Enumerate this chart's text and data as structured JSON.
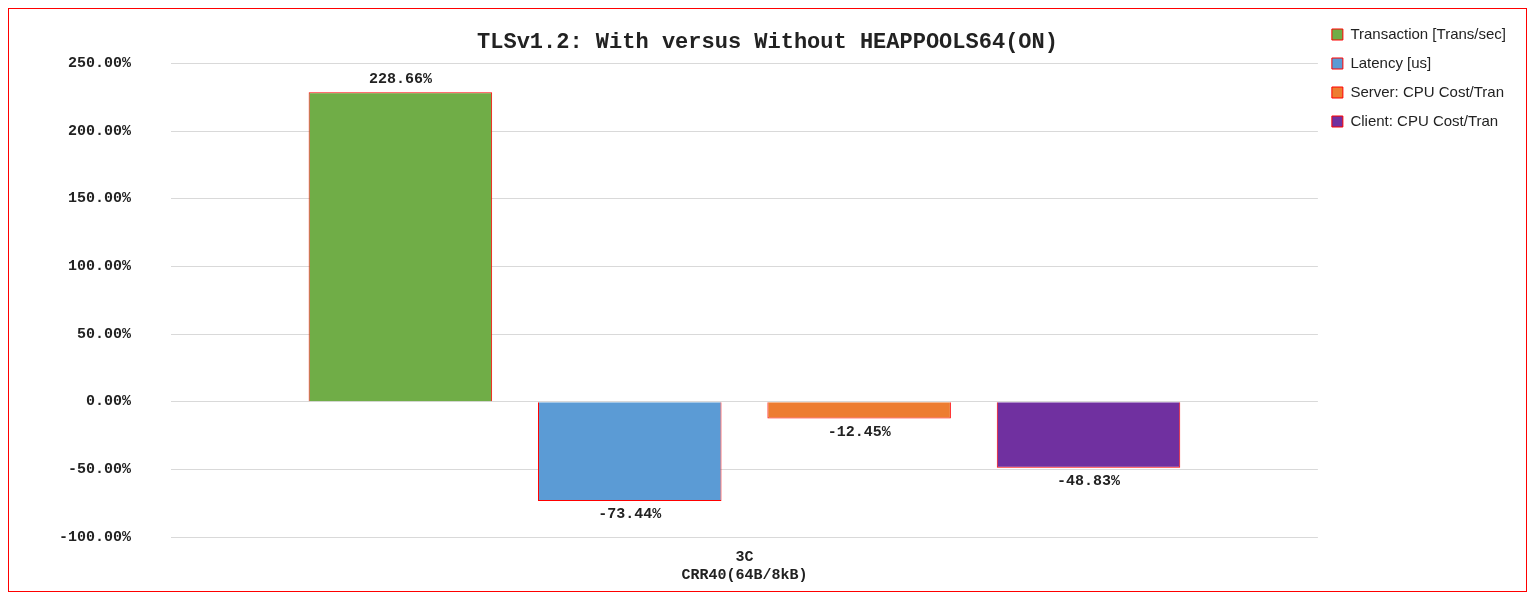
{
  "chart_data": {
    "type": "bar",
    "title": "TLSv1.2: With versus Without HEAPPOOLS64(ON)",
    "categories": [
      "3C\nCRR40(64B/8kB)"
    ],
    "series": [
      {
        "name": "Transaction [Trans/sec]",
        "color": "#70ad47",
        "values": [
          228.66
        ],
        "value_labels": [
          "228.66%"
        ]
      },
      {
        "name": "Latency [us]",
        "color": "#5b9bd5",
        "values": [
          -73.44
        ],
        "value_labels": [
          "-73.44%"
        ]
      },
      {
        "name": "Server: CPU Cost/Tran",
        "color": "#ed7d31",
        "values": [
          -12.45
        ],
        "value_labels": [
          "-12.45%"
        ]
      },
      {
        "name": "Client: CPU Cost/Tran",
        "color": "#7030a0",
        "values": [
          -48.83
        ],
        "value_labels": [
          "-48.83%"
        ]
      }
    ],
    "ylim": [
      -100,
      250
    ],
    "yticks": [
      {
        "value": -100,
        "label": "-100.00%"
      },
      {
        "value": -50,
        "label": "-50.00%"
      },
      {
        "value": 0,
        "label": "0.00%"
      },
      {
        "value": 50,
        "label": "50.00%"
      },
      {
        "value": 100,
        "label": "100.00%"
      },
      {
        "value": 150,
        "label": "150.00%"
      },
      {
        "value": 200,
        "label": "200.00%"
      },
      {
        "value": 250,
        "label": "250.00%"
      }
    ],
    "grid": "y",
    "legend": "top right"
  }
}
